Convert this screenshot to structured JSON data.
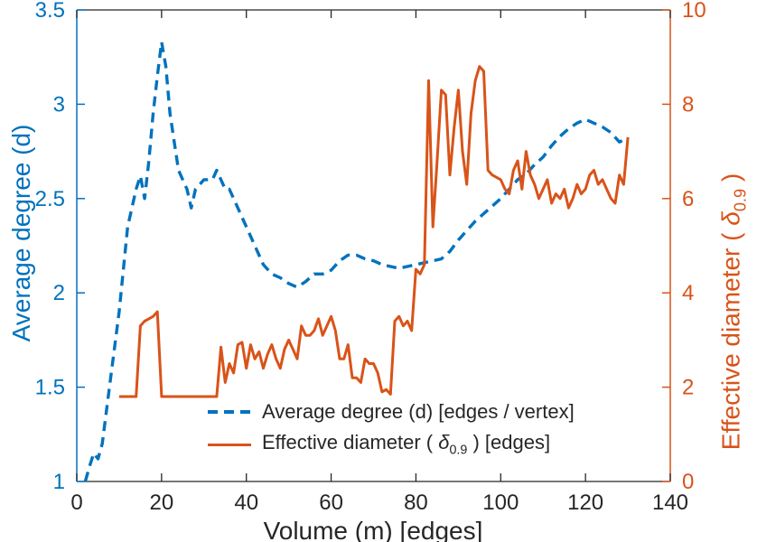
{
  "chart_data": {
    "type": "line",
    "title": "",
    "xlabel": "Volume (m) [edges]",
    "ylabel_left": "Average degree (d)",
    "ylabel_right_prefix": "Effective diameter (  ",
    "ylabel_right_symbol": "δ",
    "ylabel_right_sub": "0.9",
    "ylabel_right_suffix": " )",
    "xlim": [
      0,
      140
    ],
    "ylim_left": [
      1,
      3.5
    ],
    "ylim_right": [
      0,
      10
    ],
    "x_ticks": [
      0,
      20,
      40,
      60,
      80,
      100,
      120,
      140
    ],
    "left_ticks": [
      1,
      1.5,
      2,
      2.5,
      3,
      3.5
    ],
    "right_ticks": [
      0,
      2,
      4,
      6,
      8,
      10
    ],
    "grid": false,
    "legend_position": "inside-bottom-center",
    "colors": {
      "left": "#0072BD",
      "right": "#D95319",
      "axis": "#262626"
    },
    "legend": [
      {
        "label": "Average degree (d) [edges / vertex]"
      },
      {
        "label_prefix": "Effective diameter (   ",
        "symbol": "δ",
        "sub": "0.9",
        "label_suffix": " ) [edges]"
      }
    ],
    "series": [
      {
        "name": "Average degree (d) [edges / vertex]",
        "axis": "left",
        "style": "dashed",
        "color": "#0072BD",
        "x": [
          2,
          3,
          4,
          5,
          6,
          8,
          10,
          12,
          14,
          15,
          16,
          17,
          18,
          19,
          20,
          21,
          22,
          23,
          24,
          25,
          26,
          27,
          28,
          30,
          32,
          33,
          34,
          35,
          36,
          38,
          40,
          42,
          44,
          46,
          48,
          50,
          52,
          54,
          56,
          58,
          60,
          62,
          64,
          66,
          68,
          70,
          72,
          74,
          76,
          78,
          80,
          82,
          84,
          86,
          88,
          90,
          92,
          94,
          96,
          98,
          100,
          102,
          104,
          106,
          108,
          110,
          112,
          114,
          116,
          118,
          120,
          122,
          124,
          126,
          128,
          130
        ],
        "y": [
          1.0,
          1.08,
          1.15,
          1.12,
          1.2,
          1.55,
          1.9,
          2.35,
          2.55,
          2.62,
          2.5,
          2.7,
          2.95,
          3.15,
          3.33,
          3.2,
          2.95,
          2.8,
          2.65,
          2.6,
          2.55,
          2.45,
          2.55,
          2.6,
          2.6,
          2.65,
          2.6,
          2.55,
          2.55,
          2.45,
          2.35,
          2.25,
          2.15,
          2.1,
          2.08,
          2.05,
          2.03,
          2.06,
          2.1,
          2.1,
          2.12,
          2.17,
          2.2,
          2.2,
          2.18,
          2.17,
          2.15,
          2.14,
          2.13,
          2.14,
          2.15,
          2.16,
          2.17,
          2.18,
          2.22,
          2.28,
          2.33,
          2.38,
          2.42,
          2.46,
          2.5,
          2.55,
          2.6,
          2.63,
          2.68,
          2.72,
          2.78,
          2.83,
          2.87,
          2.9,
          2.92,
          2.9,
          2.88,
          2.85,
          2.8,
          2.82
        ]
      },
      {
        "name": "Effective diameter ( δ0.9 ) [edges]",
        "axis": "right",
        "style": "solid",
        "color": "#D95319",
        "x": [
          10,
          12,
          14,
          15,
          16,
          17,
          18,
          19,
          20,
          22,
          24,
          26,
          28,
          30,
          32,
          33,
          34,
          35,
          36,
          37,
          38,
          39,
          40,
          41,
          42,
          43,
          44,
          45,
          46,
          47,
          48,
          49,
          50,
          51,
          52,
          53,
          54,
          55,
          56,
          57,
          58,
          59,
          60,
          61,
          62,
          63,
          64,
          65,
          66,
          67,
          68,
          69,
          70,
          71,
          72,
          73,
          74,
          75,
          76,
          77,
          78,
          79,
          80,
          81,
          82,
          83,
          84,
          85,
          86,
          87,
          88,
          89,
          90,
          91,
          92,
          93,
          94,
          95,
          96,
          97,
          98,
          100,
          101,
          102,
          103,
          104,
          105,
          106,
          107,
          108,
          109,
          110,
          111,
          112,
          113,
          114,
          115,
          116,
          117,
          118,
          119,
          120,
          121,
          122,
          123,
          124,
          125,
          126,
          127,
          128,
          129,
          130
        ],
        "y": [
          1.8,
          1.8,
          1.8,
          3.3,
          3.4,
          3.45,
          3.5,
          3.6,
          1.8,
          1.8,
          1.8,
          1.8,
          1.8,
          1.8,
          1.8,
          1.8,
          2.85,
          2.1,
          2.5,
          2.3,
          2.9,
          2.95,
          2.4,
          2.9,
          2.6,
          2.75,
          2.4,
          2.7,
          2.9,
          2.6,
          2.4,
          2.8,
          3.0,
          2.8,
          2.6,
          3.3,
          3.1,
          3.1,
          3.2,
          3.45,
          3.1,
          3.3,
          3.5,
          3.2,
          2.6,
          2.6,
          2.9,
          2.2,
          2.2,
          2.1,
          2.6,
          2.5,
          2.5,
          2.3,
          1.9,
          1.95,
          1.85,
          3.4,
          3.5,
          3.3,
          3.4,
          3.2,
          4.5,
          4.4,
          4.6,
          8.5,
          5.4,
          6.8,
          8.3,
          8.2,
          6.5,
          7.5,
          8.3,
          7.0,
          6.3,
          7.8,
          8.5,
          8.8,
          8.7,
          6.6,
          6.5,
          6.4,
          6.2,
          6.1,
          6.6,
          6.8,
          6.2,
          7.0,
          6.5,
          6.3,
          6.0,
          6.2,
          6.4,
          5.9,
          6.1,
          6.0,
          6.2,
          5.8,
          6.0,
          6.3,
          6.1,
          6.2,
          6.5,
          6.6,
          6.3,
          6.4,
          6.2,
          6.0,
          5.9,
          6.5,
          6.3,
          7.3
        ]
      }
    ]
  }
}
